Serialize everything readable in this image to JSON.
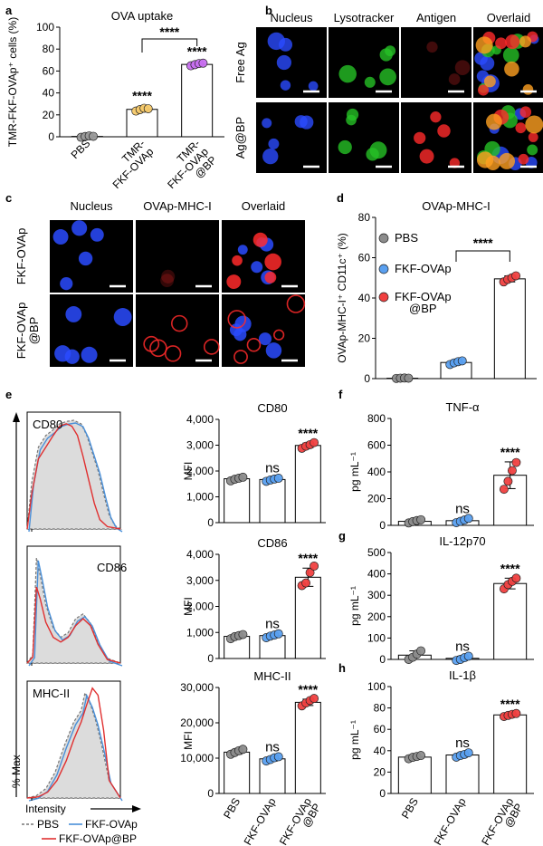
{
  "panels": {
    "a": {
      "letter": "a",
      "chart_data": {
        "type": "bar",
        "title": "OVA uptake",
        "ylabel": "TMR-FKF-OVAp⁺ cells (%)",
        "categories": [
          [
            "PBS"
          ],
          [
            "TMR-",
            "FKF-OVAp"
          ],
          [
            "TMR-",
            "FKF-OVAp",
            "@BP"
          ]
        ],
        "values": [
          0.3,
          25,
          66
        ],
        "errors": [
          0.8,
          2,
          1.5
        ],
        "points": [
          [
            -0.5,
            0.2,
            0.8,
            0.4
          ],
          [
            23.5,
            24.8,
            26,
            25.6
          ],
          [
            64.8,
            65.8,
            66.8,
            67.2
          ]
        ],
        "colors": [
          "#9a9a9a",
          "#f5c96a",
          "#c86ff0"
        ],
        "ylim": [
          0,
          100
        ],
        "yticks": [
          "0",
          "20",
          "40",
          "60",
          "80",
          "100"
        ],
        "annotations": [
          "****",
          "****"
        ],
        "bracket_label": "****"
      }
    },
    "b": {
      "letter": "b",
      "columns": [
        "Nucleus",
        "Lysotracker",
        "Antigen",
        "Overlaid"
      ],
      "column_colors": [
        "#1f3bd6",
        "#1fa31f",
        "#d62424",
        "#000000"
      ],
      "rows": [
        "Free Ag",
        "Ag@BP"
      ]
    },
    "c": {
      "letter": "c",
      "columns": [
        "Nucleus",
        "OVAp-MHC-I",
        "Overlaid"
      ],
      "column_colors": [
        "#1f3bd6",
        "#d62424",
        "#000000"
      ],
      "rows": [
        "FKF-OVAp",
        "FKF-OVAp\n@BP"
      ]
    },
    "d": {
      "letter": "d",
      "chart_data": {
        "type": "bar",
        "title": "OVAp-MHC-I",
        "ylabel": "OVAp-MHC-I⁺ CD11c⁺ (%)",
        "categories": [
          "PBS",
          "FKF-OVAp",
          "FKF-OVAp @BP"
        ],
        "values": [
          0.2,
          8,
          49.5
        ],
        "errors": [
          0.3,
          1,
          1.5
        ],
        "points": [
          [
            0.1,
            0.2,
            0.3,
            0.2
          ],
          [
            7,
            7.8,
            8.4,
            8.8
          ],
          [
            48,
            49.2,
            50,
            51
          ]
        ],
        "colors": [
          "#8c8c8c",
          "#5aa0f0",
          "#f04040"
        ],
        "ylim": [
          0,
          80
        ],
        "yticks": [
          "0",
          "20",
          "40",
          "60",
          "80"
        ],
        "legend": [
          "PBS",
          "FKF-OVAp",
          "FKF-OVAp",
          "@BP"
        ],
        "bracket_label": "****"
      }
    },
    "e": {
      "letter": "e",
      "histograms": [
        {
          "label": "CD80",
          "peaks": "CD80"
        },
        {
          "label": "CD86",
          "peaks": "CD86"
        },
        {
          "label": "MHC-II",
          "peaks": "MHC-II"
        }
      ],
      "y_axis": "% Max",
      "x_axis": "Intensity",
      "legend": [
        "PBS",
        "FKF-OVAp",
        "FKF-OVAp@BP"
      ],
      "legend_colors": [
        "#777777",
        "#4a90d9",
        "#e03030"
      ],
      "bars": [
        {
          "title": "CD80",
          "ylabel": "MFI",
          "ylim": [
            0,
            4000
          ],
          "yticks": [
            "0",
            "1,000",
            "2,000",
            "3,000",
            "4,000"
          ],
          "values": [
            1700,
            1670,
            2990
          ],
          "errors": [
            60,
            60,
            90
          ],
          "points": [
            [
              1620,
              1680,
              1720,
              1760
            ],
            [
              1600,
              1650,
              1690,
              1720
            ],
            [
              2880,
              2960,
              3020,
              3100
            ]
          ],
          "annotations": [
            "",
            "ns",
            "****"
          ]
        },
        {
          "title": "CD86",
          "ylabel": "MFI",
          "ylim": [
            0,
            4000
          ],
          "yticks": [
            "0",
            "1,000",
            "2,000",
            "3,000",
            "4,000"
          ],
          "values": [
            850,
            880,
            3120
          ],
          "errors": [
            80,
            80,
            350
          ],
          "points": [
            [
              760,
              840,
              880,
              920
            ],
            [
              800,
              860,
              900,
              950
            ],
            [
              2800,
              2900,
              3300,
              3550
            ]
          ],
          "annotations": [
            "",
            "ns",
            "****"
          ]
        },
        {
          "title": "MHC-II",
          "ylabel": "MFI",
          "ylim": [
            0,
            30000
          ],
          "yticks": [
            "0",
            "10,000",
            "20,000",
            "30,000"
          ],
          "values": [
            11700,
            9800,
            25800
          ],
          "errors": [
            600,
            600,
            900
          ],
          "points": [
            [
              11100,
              11600,
              12100,
              12500
            ],
            [
              9200,
              9600,
              10100,
              10400
            ],
            [
              24800,
              25600,
              26300,
              26900
            ]
          ],
          "annotations": [
            "",
            "ns",
            "****"
          ]
        }
      ],
      "categories": [
        "PBS",
        "FKF-OVAp",
        "FKF-OVAp @BP"
      ]
    },
    "f": {
      "letter": "f",
      "chart_data": {
        "type": "bar",
        "title": "TNF-α",
        "ylabel": "pg mL⁻¹",
        "ylim": [
          0,
          800
        ],
        "yticks": [
          "0",
          "200",
          "400",
          "600",
          "800"
        ],
        "values": [
          30,
          35,
          375
        ],
        "errors": [
          12,
          15,
          100
        ],
        "points": [
          [
            18,
            28,
            36,
            42
          ],
          [
            20,
            30,
            40,
            52
          ],
          [
            270,
            330,
            410,
            470
          ]
        ],
        "annotations": [
          "",
          "ns",
          "****"
        ]
      }
    },
    "g": {
      "letter": "g",
      "chart_data": {
        "type": "bar",
        "title": "IL-12p70",
        "ylabel": "pg mL⁻¹",
        "ylim": [
          0,
          500
        ],
        "yticks": [
          "0",
          "100",
          "200",
          "300",
          "400",
          "500"
        ],
        "values": [
          20,
          5,
          355
        ],
        "errors": [
          20,
          10,
          25
        ],
        "points": [
          [
            0,
            10,
            25,
            40
          ],
          [
            -5,
            0,
            8,
            15
          ],
          [
            330,
            350,
            365,
            380
          ]
        ],
        "annotations": [
          "",
          "ns",
          "****"
        ]
      }
    },
    "h": {
      "letter": "h",
      "chart_data": {
        "type": "bar",
        "title": "IL-1β",
        "ylabel": "pg mL⁻¹",
        "ylim": [
          0,
          100
        ],
        "yticks": [
          "0",
          "20",
          "40",
          "60",
          "80",
          "100"
        ],
        "values": [
          34,
          36,
          73.5
        ],
        "errors": [
          1.5,
          2,
          1.2
        ],
        "points": [
          [
            32.5,
            33.8,
            34.6,
            35.5
          ],
          [
            34,
            35.5,
            36.5,
            38
          ],
          [
            72,
            73,
            74,
            74.8
          ]
        ],
        "annotations": [
          "",
          "ns",
          "****"
        ],
        "categories": [
          "PBS",
          "FKF-OVAp",
          "FKF-OVAp @BP"
        ]
      }
    }
  },
  "bar_colors": [
    "#8c8c8c",
    "#5aa0f0",
    "#f04040"
  ]
}
